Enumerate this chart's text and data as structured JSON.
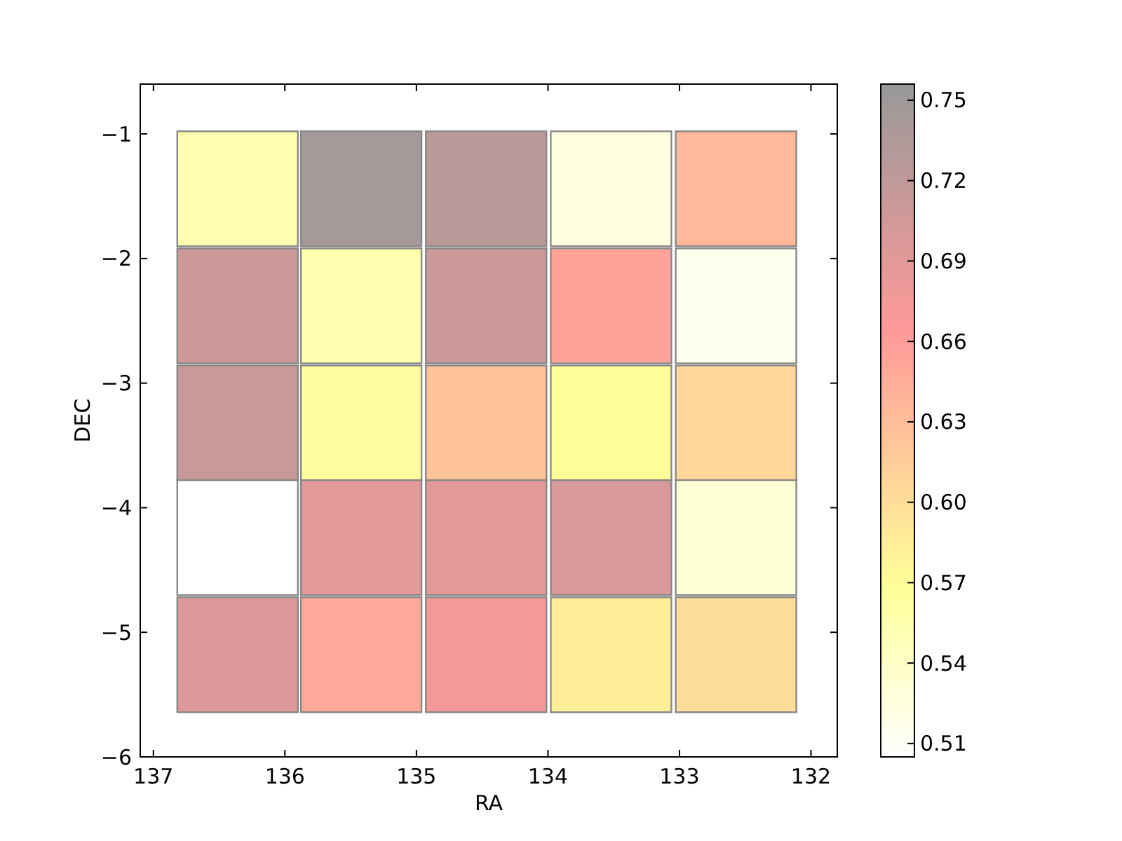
{
  "chart_data": {
    "type": "heatmap",
    "xlabel": "RA",
    "ylabel": "DEC",
    "x": [
      136.36,
      135.42,
      134.47,
      133.52,
      132.57
    ],
    "y": [
      -1.44,
      -2.38,
      -3.32,
      -4.24,
      -5.18
    ],
    "cells": [
      [
        0.555,
        0.745,
        0.725,
        0.525,
        0.635
      ],
      [
        0.71,
        0.555,
        0.71,
        0.655,
        0.515
      ],
      [
        0.715,
        0.565,
        0.625,
        0.57,
        0.605
      ],
      [
        0.505,
        0.69,
        0.69,
        0.7,
        0.53
      ],
      [
        0.695,
        0.65,
        0.675,
        0.585,
        0.6
      ]
    ],
    "xlim": [
      137.1,
      131.8
    ],
    "ylim": [
      -6,
      -0.6
    ],
    "xticks": [
      137,
      136,
      135,
      134,
      133,
      132
    ],
    "yticks": [
      {
        "value": -1,
        "label": "−1"
      },
      {
        "value": -2,
        "label": "−2"
      },
      {
        "value": -3,
        "label": "−3"
      },
      {
        "value": -4,
        "label": "−4"
      },
      {
        "value": -5,
        "label": "−5"
      },
      {
        "value": -6,
        "label": "−6"
      }
    ],
    "clim": [
      0.505,
      0.756
    ],
    "cticks": [
      {
        "value": 0.51,
        "label": "0.51"
      },
      {
        "value": 0.54,
        "label": "0.54"
      },
      {
        "value": 0.57,
        "label": "0.57"
      },
      {
        "value": 0.6,
        "label": "0.60"
      },
      {
        "value": 0.63,
        "label": "0.63"
      },
      {
        "value": 0.66,
        "label": "0.66"
      },
      {
        "value": 0.69,
        "label": "0.69"
      },
      {
        "value": 0.72,
        "label": "0.72"
      },
      {
        "value": 0.75,
        "label": "0.75"
      }
    ],
    "grid": false
  }
}
